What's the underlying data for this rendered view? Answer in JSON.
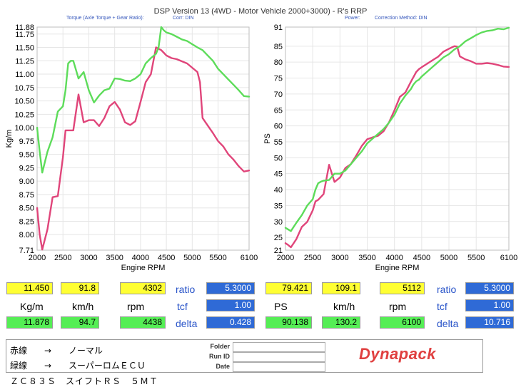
{
  "header": {
    "title": "DSP Version 13 (4WD - Motor Vehicle 2000+3000) - R's  RRP",
    "left_sub1": "Torque (Axle Torque + Gear Ratio):",
    "left_sub2": "Corr: DIN",
    "right_sub1": "Power:",
    "right_sub2": "Correction Method: DIN"
  },
  "colors": {
    "red": "#e0457a",
    "green": "#5ddc5a",
    "yellow": "#ffff33",
    "blue": "#2f6ad6"
  },
  "chart_data": [
    {
      "type": "line",
      "xlabel": "Engine RPM",
      "ylabel": "Kg/m",
      "xlim": [
        2000,
        6100
      ],
      "ylim": [
        7.71,
        11.88
      ],
      "x_ticks": [
        "2000",
        "2500",
        "3000",
        "3500",
        "4000",
        "4500",
        "5000",
        "5500",
        "6100"
      ],
      "y_ticks": [
        "11.88",
        "11.75",
        "11.50",
        "11.25",
        "11.00",
        "10.75",
        "10.50",
        "10.25",
        "10.00",
        "9.75",
        "9.50",
        "9.25",
        "9.00",
        "8.75",
        "8.50",
        "8.25",
        "8.00",
        "7.71"
      ],
      "y_tick_values": [
        11.88,
        11.75,
        11.5,
        11.25,
        11.0,
        10.75,
        10.5,
        10.25,
        10.0,
        9.75,
        9.5,
        9.25,
        9.0,
        8.75,
        8.5,
        8.25,
        8.0,
        7.71
      ],
      "grid": true,
      "series": [
        {
          "color": "#e0457a",
          "x": [
            2000,
            2050,
            2100,
            2200,
            2300,
            2400,
            2500,
            2550,
            2600,
            2700,
            2800,
            2900,
            3000,
            3100,
            3200,
            3300,
            3400,
            3500,
            3600,
            3700,
            3800,
            3900,
            4000,
            4100,
            4200,
            4300,
            4400,
            4450,
            4500,
            4600,
            4700,
            4800,
            4900,
            5000,
            5100,
            5150,
            5200,
            5300,
            5400,
            5500,
            5600,
            5700,
            5800,
            5900,
            6000,
            6100
          ],
          "y": [
            8.5,
            8.0,
            7.72,
            8.1,
            8.7,
            8.72,
            9.45,
            9.95,
            9.95,
            9.95,
            10.62,
            10.1,
            10.14,
            10.14,
            10.03,
            10.18,
            10.4,
            10.48,
            10.34,
            10.1,
            10.05,
            10.12,
            10.48,
            10.85,
            11.0,
            11.5,
            11.45,
            11.4,
            11.35,
            11.3,
            11.28,
            11.24,
            11.2,
            11.12,
            11.04,
            10.85,
            10.18,
            10.04,
            9.9,
            9.75,
            9.65,
            9.5,
            9.4,
            9.28,
            9.18,
            9.2
          ]
        },
        {
          "color": "#5ddc5a",
          "x": [
            2000,
            2050,
            2100,
            2200,
            2300,
            2400,
            2500,
            2550,
            2600,
            2650,
            2700,
            2800,
            2900,
            3000,
            3100,
            3200,
            3300,
            3400,
            3500,
            3600,
            3700,
            3800,
            3900,
            4000,
            4100,
            4200,
            4300,
            4350,
            4400,
            4450,
            4500,
            4600,
            4700,
            4800,
            4900,
            5000,
            5100,
            5200,
            5300,
            5400,
            5500,
            5600,
            5700,
            5800,
            5900,
            6000,
            6100
          ],
          "y": [
            10.0,
            9.55,
            9.16,
            9.55,
            9.82,
            10.3,
            10.4,
            10.7,
            11.2,
            11.25,
            11.25,
            10.92,
            11.04,
            10.7,
            10.47,
            10.6,
            10.7,
            10.73,
            10.92,
            10.91,
            10.88,
            10.87,
            10.92,
            11.0,
            11.2,
            11.3,
            11.38,
            11.5,
            11.88,
            11.82,
            11.78,
            11.75,
            11.7,
            11.65,
            11.62,
            11.56,
            11.5,
            11.45,
            11.35,
            11.25,
            11.1,
            11.0,
            10.9,
            10.8,
            10.7,
            10.59,
            10.58
          ]
        }
      ]
    },
    {
      "type": "line",
      "xlabel": "Engine RPM",
      "ylabel": "PS",
      "xlim": [
        2000,
        6100
      ],
      "ylim": [
        21,
        91
      ],
      "x_ticks": [
        "2000",
        "2500",
        "3000",
        "3500",
        "4000",
        "4500",
        "5000",
        "5500",
        "6100"
      ],
      "y_ticks": [
        "91",
        "85",
        "80",
        "75",
        "70",
        "65",
        "60",
        "55",
        "50",
        "45",
        "40",
        "35",
        "30",
        "25",
        "21"
      ],
      "y_tick_values": [
        91,
        85,
        80,
        75,
        70,
        65,
        60,
        55,
        50,
        45,
        40,
        35,
        30,
        25,
        21
      ],
      "grid": true,
      "series": [
        {
          "color": "#e0457a",
          "x": [
            2000,
            2050,
            2100,
            2200,
            2300,
            2400,
            2500,
            2550,
            2600,
            2700,
            2800,
            2900,
            3000,
            3100,
            3200,
            3300,
            3400,
            3500,
            3600,
            3700,
            3800,
            3900,
            4000,
            4100,
            4200,
            4300,
            4400,
            4450,
            4500,
            4600,
            4700,
            4800,
            4900,
            5000,
            5100,
            5150,
            5200,
            5300,
            5400,
            5500,
            5600,
            5700,
            5800,
            5900,
            6000,
            6100
          ],
          "y": [
            23.2,
            22.6,
            21.9,
            24.5,
            28.3,
            29.9,
            33.5,
            36.3,
            36.8,
            38.6,
            47.8,
            42.4,
            43.8,
            46.8,
            48.0,
            50.7,
            53.7,
            55.8,
            56.4,
            56.9,
            58.3,
            61.1,
            64.9,
            69.1,
            70.5,
            73.8,
            76.9,
            77.8,
            78.4,
            79.5,
            80.6,
            81.7,
            83.3,
            84.2,
            85.0,
            84.9,
            81.8,
            80.9,
            80.3,
            79.5,
            79.5,
            79.7,
            79.5,
            79.1,
            78.6,
            78.5
          ]
        },
        {
          "color": "#5ddc5a",
          "x": [
            2000,
            2050,
            2100,
            2200,
            2300,
            2400,
            2500,
            2550,
            2600,
            2650,
            2700,
            2800,
            2900,
            3000,
            3100,
            3200,
            3300,
            3400,
            3500,
            3600,
            3700,
            3800,
            3900,
            4000,
            4100,
            4200,
            4300,
            4350,
            4400,
            4450,
            4500,
            4600,
            4700,
            4800,
            4900,
            5000,
            5100,
            5200,
            5300,
            5400,
            5500,
            5600,
            5700,
            5800,
            5900,
            6000,
            6100
          ],
          "y": [
            28.0,
            27.5,
            27.0,
            29.6,
            32.0,
            35.0,
            37.0,
            40.0,
            42.0,
            42.5,
            42.8,
            43.0,
            45.0,
            45.0,
            46.0,
            48.0,
            50.0,
            52.0,
            54.5,
            56.0,
            57.5,
            59.0,
            61.0,
            63.5,
            67.0,
            69.5,
            71.5,
            73.0,
            74.0,
            74.5,
            75.5,
            77.0,
            78.5,
            80.0,
            81.5,
            82.5,
            84.0,
            85.0,
            86.5,
            87.5,
            88.5,
            89.3,
            89.8,
            90.0,
            90.5,
            90.3,
            90.8
          ]
        }
      ]
    }
  ],
  "readouts": {
    "left": {
      "row1": [
        "11.450",
        "91.8",
        "4302"
      ],
      "row2_labels": [
        "Kg/m",
        "km/h",
        "rpm"
      ],
      "row3": [
        "11.878",
        "94.7",
        "4438"
      ],
      "ratio_label": "ratio",
      "ratio_value": "5.3000",
      "tcf_label": "tcf",
      "tcf_value": "1.00",
      "delta_label": "delta",
      "delta_value": "0.428"
    },
    "right": {
      "row1": [
        "79.421",
        "109.1",
        "5112"
      ],
      "row2_labels": [
        "PS",
        "km/h",
        "rpm"
      ],
      "row3": [
        "90.138",
        "130.2",
        "6100"
      ],
      "ratio_label": "ratio",
      "ratio_value": "5.3000",
      "tcf_label": "tcf",
      "tcf_value": "1.00",
      "delta_label": "delta",
      "delta_value": "10.716"
    }
  },
  "notes": {
    "red_line": "赤線　　→　　ノーマル",
    "green_line": "緑線　　→　　スーパーロムＥＣＵ",
    "vehicle": "ＺＣ８３Ｓ　スイフトＲＳ　５ＭＴ"
  },
  "form": {
    "folder_label": "Folder",
    "run_id_label": "Run ID",
    "date_label": "Date"
  },
  "logo": "Dynapack"
}
